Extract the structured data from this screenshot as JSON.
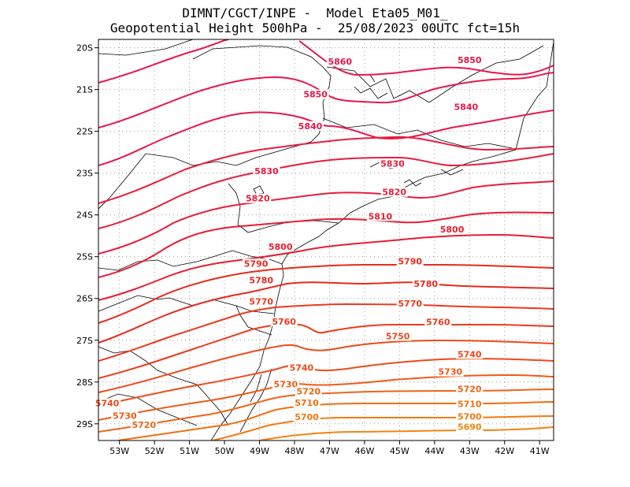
{
  "header": {
    "line1": "DIMNT/CGCT/INPE -  Model Eta05_M01_",
    "line2": "Geopotential Height 500hPa -  25/08/2023 00UTC fct=15h"
  },
  "map": {
    "lon_range": [
      -53.6,
      -40.6
    ],
    "lat_range": [
      -29.4,
      -19.8
    ],
    "x_ticks": [
      {
        "lon": -53,
        "label": "53W"
      },
      {
        "lon": -52,
        "label": "52W"
      },
      {
        "lon": -51,
        "label": "51W"
      },
      {
        "lon": -50,
        "label": "50W"
      },
      {
        "lon": -49,
        "label": "49W"
      },
      {
        "lon": -48,
        "label": "48W"
      },
      {
        "lon": -47,
        "label": "47W"
      },
      {
        "lon": -46,
        "label": "46W"
      },
      {
        "lon": -45,
        "label": "45W"
      },
      {
        "lon": -44,
        "label": "44W"
      },
      {
        "lon": -43,
        "label": "43W"
      },
      {
        "lon": -42,
        "label": "42W"
      },
      {
        "lon": -41,
        "label": "41W"
      }
    ],
    "y_ticks": [
      {
        "lat": -20,
        "label": "20S"
      },
      {
        "lat": -21,
        "label": "21S"
      },
      {
        "lat": -22,
        "label": "22S"
      },
      {
        "lat": -23,
        "label": "23S"
      },
      {
        "lat": -24,
        "label": "24S"
      },
      {
        "lat": -25,
        "label": "25S"
      },
      {
        "lat": -26,
        "label": "26S"
      },
      {
        "lat": -27,
        "label": "27S"
      },
      {
        "lat": -28,
        "label": "28S"
      },
      {
        "lat": -29,
        "label": "29S"
      }
    ],
    "contour_labels": [
      {
        "text": "5860",
        "lon": -46.7,
        "lat": -20.37,
        "color": "#e8174c"
      },
      {
        "text": "5850",
        "lon": -43.0,
        "lat": -20.33,
        "color": "#e8174c"
      },
      {
        "text": "5850",
        "lon": -47.4,
        "lat": -21.15,
        "color": "#e8174c"
      },
      {
        "text": "5840",
        "lon": -43.1,
        "lat": -21.45,
        "color": "#e8174c"
      },
      {
        "text": "5840",
        "lon": -47.55,
        "lat": -21.91,
        "color": "#e8174c"
      },
      {
        "text": "5830",
        "lon": -45.2,
        "lat": -22.81,
        "color": "#e81c3c"
      },
      {
        "text": "5830",
        "lon": -48.8,
        "lat": -22.99,
        "color": "#e81c3c"
      },
      {
        "text": "5820",
        "lon": -45.15,
        "lat": -23.49,
        "color": "#e81c3c"
      },
      {
        "text": "5820",
        "lon": -49.05,
        "lat": -23.64,
        "color": "#e81c3c"
      },
      {
        "text": "5810",
        "lon": -45.55,
        "lat": -24.07,
        "color": "#e81c30"
      },
      {
        "text": "5800",
        "lon": -43.5,
        "lat": -24.38,
        "color": "#e81c30"
      },
      {
        "text": "5800",
        "lon": -48.4,
        "lat": -24.8,
        "color": "#e81c30"
      },
      {
        "text": "5790",
        "lon": -44.7,
        "lat": -25.15,
        "color": "#e82a1c"
      },
      {
        "text": "5790",
        "lon": -49.1,
        "lat": -25.2,
        "color": "#e82a1c"
      },
      {
        "text": "5780",
        "lon": -44.25,
        "lat": -25.68,
        "color": "#e82a1c"
      },
      {
        "text": "5780",
        "lon": -48.95,
        "lat": -25.6,
        "color": "#e82a1c"
      },
      {
        "text": "5770",
        "lon": -44.7,
        "lat": -26.16,
        "color": "#ec3a1c"
      },
      {
        "text": "5770",
        "lon": -48.95,
        "lat": -26.11,
        "color": "#ec3a1c"
      },
      {
        "text": "5760",
        "lon": -43.9,
        "lat": -26.6,
        "color": "#ec3a1c"
      },
      {
        "text": "5760",
        "lon": -48.3,
        "lat": -26.59,
        "color": "#ec3a1c"
      },
      {
        "text": "5750",
        "lon": -45.05,
        "lat": -26.94,
        "color": "#ee4a18"
      },
      {
        "text": "5740",
        "lon": -43.0,
        "lat": -27.37,
        "color": "#ee4a18"
      },
      {
        "text": "5740",
        "lon": -47.8,
        "lat": -27.69,
        "color": "#ee4a18"
      },
      {
        "text": "5740",
        "lon": -53.35,
        "lat": -28.54,
        "color": "#ee4a18"
      },
      {
        "text": "5730",
        "lon": -43.55,
        "lat": -27.79,
        "color": "#f05a14"
      },
      {
        "text": "5730",
        "lon": -48.25,
        "lat": -28.09,
        "color": "#f05a14"
      },
      {
        "text": "5730",
        "lon": -52.85,
        "lat": -28.84,
        "color": "#f05a14"
      },
      {
        "text": "5720",
        "lon": -43.0,
        "lat": -28.2,
        "color": "#f06414"
      },
      {
        "text": "5720",
        "lon": -47.6,
        "lat": -28.26,
        "color": "#f06414"
      },
      {
        "text": "5720",
        "lon": -52.3,
        "lat": -29.06,
        "color": "#f06414"
      },
      {
        "text": "5710",
        "lon": -43.0,
        "lat": -28.56,
        "color": "#f26e10"
      },
      {
        "text": "5710",
        "lon": -47.65,
        "lat": -28.53,
        "color": "#f26e10"
      },
      {
        "text": "5700",
        "lon": -43.0,
        "lat": -28.86,
        "color": "#f27a10"
      },
      {
        "text": "5700",
        "lon": -47.65,
        "lat": -28.87,
        "color": "#f27a10"
      },
      {
        "text": "5690",
        "lon": -43.0,
        "lat": -29.11,
        "color": "#f48410"
      }
    ],
    "colors": {
      "contour_hi": "#e8174c",
      "contour_mid": "#e8301c",
      "contour_lo": "#f07a10",
      "coast": "#000000",
      "grid": "#999999"
    }
  }
}
